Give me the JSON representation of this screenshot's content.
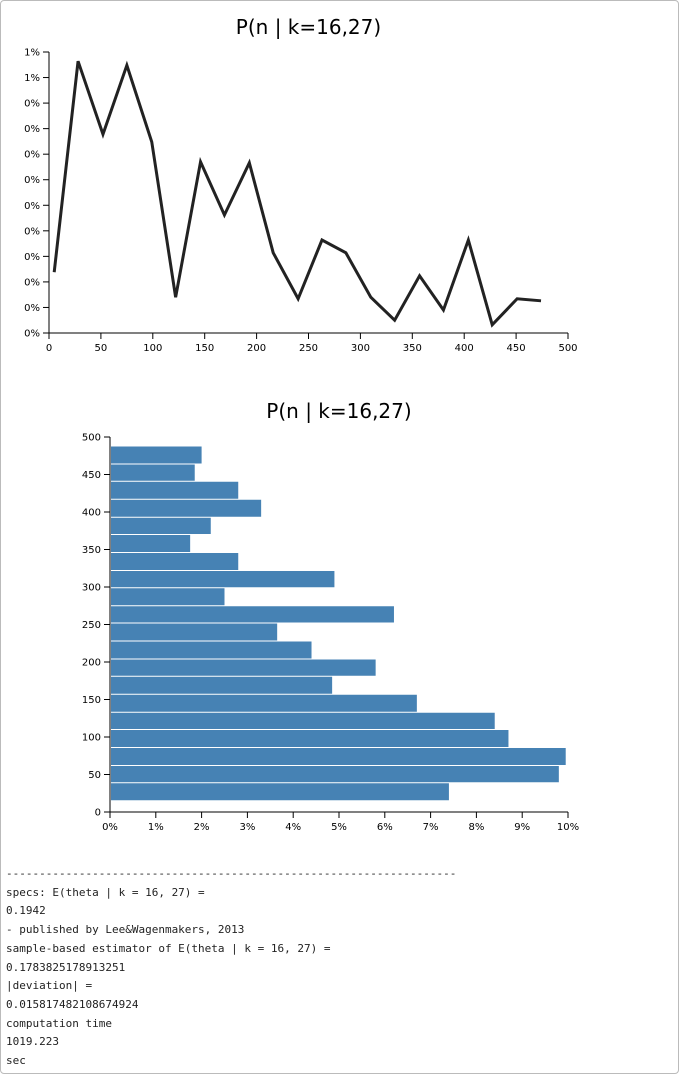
{
  "chart_data": [
    {
      "type": "line",
      "title": "P(n | k=16,27)",
      "x": [
        5,
        28,
        52,
        75,
        99,
        122,
        146,
        169,
        193,
        216,
        240,
        263,
        286,
        310,
        333,
        357,
        380,
        404,
        427,
        451,
        474
      ],
      "series": [
        {
          "color": "#222222",
          "values": [
            0.119,
            0.532,
            0.389,
            0.524,
            0.374,
            0.07,
            0.335,
            0.231,
            0.333,
            0.157,
            0.067,
            0.182,
            0.157,
            0.07,
            0.025,
            0.112,
            0.045,
            0.182,
            0.016,
            0.067,
            0.063
          ]
        }
      ],
      "xlim": [
        0,
        500
      ],
      "xticks": [
        0,
        50,
        100,
        150,
        200,
        250,
        300,
        350,
        400,
        450,
        500
      ],
      "ylim": [
        0,
        0.55
      ],
      "yticks": [
        {
          "value": 0,
          "label": "0%"
        },
        {
          "value": 0.05,
          "label": "0%"
        },
        {
          "value": 0.1,
          "label": "0%"
        },
        {
          "value": 0.15,
          "label": "0%"
        },
        {
          "value": 0.2,
          "label": "0%"
        },
        {
          "value": 0.25,
          "label": "0%"
        },
        {
          "value": 0.3,
          "label": "0%"
        },
        {
          "value": 0.35,
          "label": "0%"
        },
        {
          "value": 0.4,
          "label": "0%"
        },
        {
          "value": 0.45,
          "label": "0%"
        },
        {
          "value": 0.5,
          "label": "1%"
        },
        {
          "value": 0.55,
          "label": "1%"
        }
      ]
    },
    {
      "type": "histogram",
      "orientation": "horizontal",
      "title": "P(n | k=16,27)",
      "color": "#4682b4",
      "bins": [
        15,
        39,
        62,
        86,
        110,
        133,
        157,
        181,
        204,
        228,
        252,
        275,
        299,
        322,
        346,
        370,
        393,
        417,
        441,
        464,
        488
      ],
      "values": [
        7.4,
        9.8,
        9.95,
        8.7,
        8.4,
        6.7,
        4.85,
        5.8,
        4.4,
        3.65,
        6.2,
        2.5,
        4.9,
        2.8,
        1.75,
        2.2,
        3.3,
        2.8,
        1.85,
        2.0
      ],
      "xlim": [
        0,
        10
      ],
      "xticks": [
        {
          "value": 0,
          "label": "0%"
        },
        {
          "value": 1,
          "label": "1%"
        },
        {
          "value": 2,
          "label": "2%"
        },
        {
          "value": 3,
          "label": "3%"
        },
        {
          "value": 4,
          "label": "4%"
        },
        {
          "value": 5,
          "label": "5%"
        },
        {
          "value": 6,
          "label": "6%"
        },
        {
          "value": 7,
          "label": "7%"
        },
        {
          "value": 8,
          "label": "8%"
        },
        {
          "value": 9,
          "label": "9%"
        },
        {
          "value": 10,
          "label": "10%"
        }
      ],
      "ylim": [
        0,
        500
      ],
      "yticks": [
        0,
        50,
        100,
        150,
        200,
        250,
        300,
        350,
        400,
        450,
        500
      ]
    }
  ],
  "output": {
    "separator": "--------------------------------------------------------------------",
    "lines": [
      "specs: E(theta | k = 16, 27) =",
      "0.1942",
      "- published by Lee&Wagenmakers, 2013",
      "sample-based estimator of E(theta | k = 16, 27) =",
      "0.1783825178913251",
      "|deviation| =",
      "0.015817482108674924",
      "computation time",
      "1019.223",
      "sec"
    ]
  }
}
